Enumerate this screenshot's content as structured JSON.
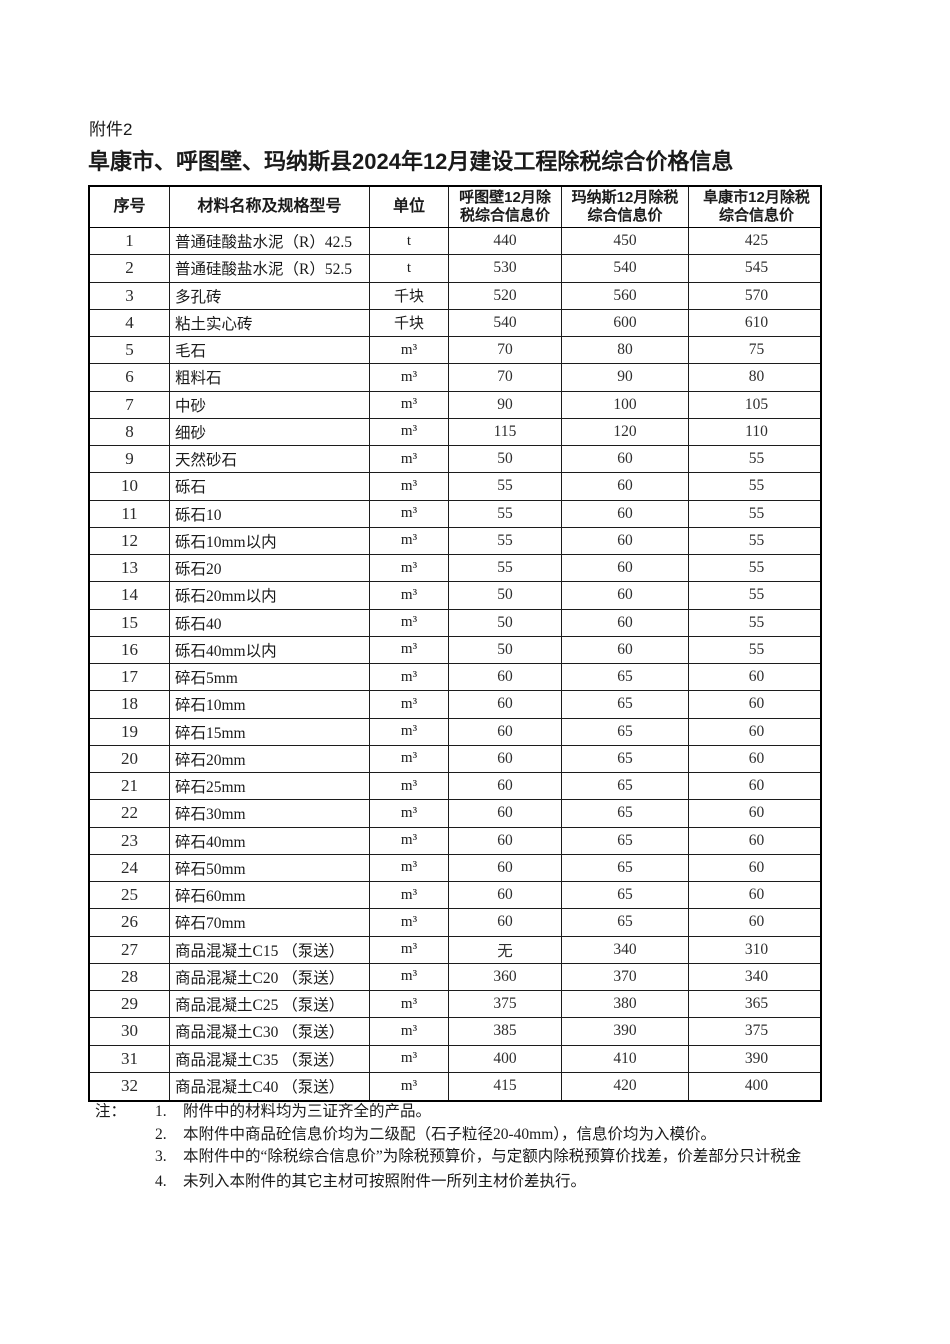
{
  "document": {
    "attachment_label": "附件2",
    "title": "阜康市、呼图壁、玛纳斯县2024年12月建设工程除税综合价格信息"
  },
  "colors": {
    "background": "#ffffff",
    "text": "#1a1a1a",
    "table_border": "#000000"
  },
  "table": {
    "headers": {
      "seq": "序号",
      "name": "材料名称及规格型号",
      "unit": "单位",
      "hutubi": "呼图壁12月除\n税综合信息价",
      "manasi": "玛纳斯12月除税\n综合信息价",
      "fukang": "阜康市12月除税\n综合信息价"
    },
    "rows": [
      {
        "seq": "1",
        "name": "普通硅酸盐水泥（R）42.5",
        "unit": "t",
        "hutubi": "440",
        "manasi": "450",
        "fukang": "425"
      },
      {
        "seq": "2",
        "name": "普通硅酸盐水泥（R）52.5",
        "unit": "t",
        "hutubi": "530",
        "manasi": "540",
        "fukang": "545"
      },
      {
        "seq": "3",
        "name": "多孔砖",
        "unit": "千块",
        "hutubi": "520",
        "manasi": "560",
        "fukang": "570"
      },
      {
        "seq": "4",
        "name": "粘土实心砖",
        "unit": "千块",
        "hutubi": "540",
        "manasi": "600",
        "fukang": "610"
      },
      {
        "seq": "5",
        "name": "毛石",
        "unit": "m³",
        "hutubi": "70",
        "manasi": "80",
        "fukang": "75"
      },
      {
        "seq": "6",
        "name": "粗料石",
        "unit": "m³",
        "hutubi": "70",
        "manasi": "90",
        "fukang": "80"
      },
      {
        "seq": "7",
        "name": "中砂",
        "unit": "m³",
        "hutubi": "90",
        "manasi": "100",
        "fukang": "105"
      },
      {
        "seq": "8",
        "name": "细砂",
        "unit": "m³",
        "hutubi": "115",
        "manasi": "120",
        "fukang": "110"
      },
      {
        "seq": "9",
        "name": "天然砂石",
        "unit": "m³",
        "hutubi": "50",
        "manasi": "60",
        "fukang": "55"
      },
      {
        "seq": "10",
        "name": "砾石",
        "unit": "m³",
        "hutubi": "55",
        "manasi": "60",
        "fukang": "55"
      },
      {
        "seq": "11",
        "name": "砾石10",
        "unit": "m³",
        "hutubi": "55",
        "manasi": "60",
        "fukang": "55"
      },
      {
        "seq": "12",
        "name": "砾石10mm以内",
        "unit": "m³",
        "hutubi": "55",
        "manasi": "60",
        "fukang": "55"
      },
      {
        "seq": "13",
        "name": "砾石20",
        "unit": "m³",
        "hutubi": "55",
        "manasi": "60",
        "fukang": "55"
      },
      {
        "seq": "14",
        "name": "砾石20mm以内",
        "unit": "m³",
        "hutubi": "50",
        "manasi": "60",
        "fukang": "55"
      },
      {
        "seq": "15",
        "name": "砾石40",
        "unit": "m³",
        "hutubi": "50",
        "manasi": "60",
        "fukang": "55"
      },
      {
        "seq": "16",
        "name": "砾石40mm以内",
        "unit": "m³",
        "hutubi": "50",
        "manasi": "60",
        "fukang": "55"
      },
      {
        "seq": "17",
        "name": "碎石5mm",
        "unit": "m³",
        "hutubi": "60",
        "manasi": "65",
        "fukang": "60"
      },
      {
        "seq": "18",
        "name": "碎石10mm",
        "unit": "m³",
        "hutubi": "60",
        "manasi": "65",
        "fukang": "60"
      },
      {
        "seq": "19",
        "name": "碎石15mm",
        "unit": "m³",
        "hutubi": "60",
        "manasi": "65",
        "fukang": "60"
      },
      {
        "seq": "20",
        "name": "碎石20mm",
        "unit": "m³",
        "hutubi": "60",
        "manasi": "65",
        "fukang": "60"
      },
      {
        "seq": "21",
        "name": "碎石25mm",
        "unit": "m³",
        "hutubi": "60",
        "manasi": "65",
        "fukang": "60"
      },
      {
        "seq": "22",
        "name": "碎石30mm",
        "unit": "m³",
        "hutubi": "60",
        "manasi": "65",
        "fukang": "60"
      },
      {
        "seq": "23",
        "name": "碎石40mm",
        "unit": "m³",
        "hutubi": "60",
        "manasi": "65",
        "fukang": "60"
      },
      {
        "seq": "24",
        "name": "碎石50mm",
        "unit": "m³",
        "hutubi": "60",
        "manasi": "65",
        "fukang": "60"
      },
      {
        "seq": "25",
        "name": "碎石60mm",
        "unit": "m³",
        "hutubi": "60",
        "manasi": "65",
        "fukang": "60"
      },
      {
        "seq": "26",
        "name": "碎石70mm",
        "unit": "m³",
        "hutubi": "60",
        "manasi": "65",
        "fukang": "60"
      },
      {
        "seq": "27",
        "name": "商品混凝土C15 （泵送）",
        "unit": "m³",
        "hutubi": "无",
        "manasi": "340",
        "fukang": "310"
      },
      {
        "seq": "28",
        "name": "商品混凝土C20 （泵送）",
        "unit": "m³",
        "hutubi": "360",
        "manasi": "370",
        "fukang": "340"
      },
      {
        "seq": "29",
        "name": "商品混凝土C25 （泵送）",
        "unit": "m³",
        "hutubi": "375",
        "manasi": "380",
        "fukang": "365"
      },
      {
        "seq": "30",
        "name": "商品混凝土C30 （泵送）",
        "unit": "m³",
        "hutubi": "385",
        "manasi": "390",
        "fukang": "375"
      },
      {
        "seq": "31",
        "name": "商品混凝土C35 （泵送）",
        "unit": "m³",
        "hutubi": "400",
        "manasi": "410",
        "fukang": "390"
      },
      {
        "seq": "32",
        "name": "商品混凝土C40 （泵送）",
        "unit": "m³",
        "hutubi": "415",
        "manasi": "420",
        "fukang": "400"
      }
    ]
  },
  "notes": {
    "label": "注：",
    "items": [
      {
        "num": "1.",
        "text": "附件中的材料均为三证齐全的产品。"
      },
      {
        "num": "2.",
        "text": "本附件中商品砼信息价均为二级配（石子粒径20-40mm），信息价均为入模价。"
      },
      {
        "num": "3.",
        "text": "本附件中的“除税综合信息价”为除税预算价，与定额内除税预算价找差，价差部分只计税金"
      },
      {
        "num": "4.",
        "text": "未列入本附件的其它主材可按照附件一所列主材价差执行。"
      }
    ]
  }
}
